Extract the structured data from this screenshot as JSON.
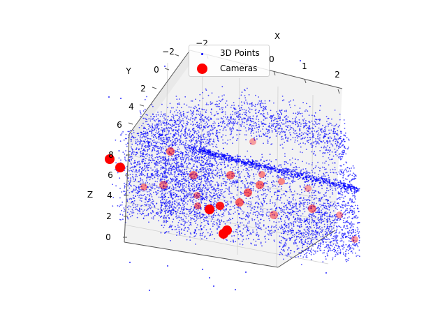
{
  "chart_data": {
    "type": "scatter3d",
    "title": "",
    "axes": {
      "x": {
        "label": "X",
        "ticks": [
          "−2",
          "0",
          "1",
          "2"
        ]
      },
      "y": {
        "label": "Y",
        "ticks": [
          "−2",
          "0",
          "2",
          "4",
          "6"
        ]
      },
      "z": {
        "label": "Z",
        "ticks": [
          "0",
          "2",
          "4",
          "6",
          "8"
        ]
      }
    },
    "grid": true,
    "legend": {
      "placement": "top-center",
      "entries": [
        {
          "name": "3D Points",
          "color": "#0000ff",
          "marker": "small-dot"
        },
        {
          "name": "Cameras",
          "color": "#ff0000",
          "marker": "large-circle"
        }
      ]
    },
    "series": [
      {
        "name": "3D Points",
        "color": "#0000ff",
        "approx_count": 7000
      },
      {
        "name": "Cameras",
        "color": "#ff0000",
        "approx_count": 24
      }
    ]
  }
}
